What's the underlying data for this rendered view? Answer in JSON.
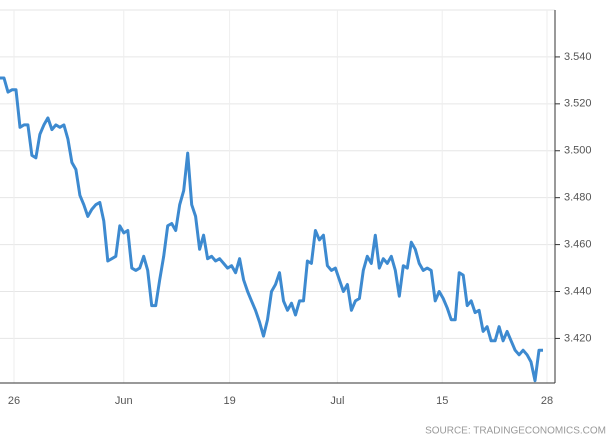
{
  "chart_data": {
    "type": "line",
    "source": "SOURCE: TRADINGECONOMICS.COM",
    "series": [
      {
        "color": "#3d8ad0",
        "values": [
          3.531,
          3.531,
          3.525,
          3.526,
          3.526,
          3.51,
          3.511,
          3.511,
          3.498,
          3.497,
          3.507,
          3.511,
          3.514,
          3.509,
          3.511,
          3.51,
          3.511,
          3.505,
          3.495,
          3.492,
          3.481,
          3.477,
          3.472,
          3.475,
          3.477,
          3.478,
          3.47,
          3.453,
          3.454,
          3.455,
          3.468,
          3.465,
          3.466,
          3.45,
          3.449,
          3.45,
          3.455,
          3.449,
          3.434,
          3.434,
          3.445,
          3.455,
          3.468,
          3.469,
          3.466,
          3.477,
          3.483,
          3.499,
          3.477,
          3.472,
          3.458,
          3.464,
          3.454,
          3.455,
          3.453,
          3.454,
          3.452,
          3.45,
          3.451,
          3.448,
          3.454,
          3.445,
          3.44,
          3.436,
          3.432,
          3.427,
          3.421,
          3.428,
          3.44,
          3.443,
          3.448,
          3.436,
          3.432,
          3.435,
          3.43,
          3.436,
          3.436,
          3.453,
          3.452,
          3.466,
          3.462,
          3.464,
          3.451,
          3.449,
          3.45,
          3.445,
          3.44,
          3.443,
          3.432,
          3.436,
          3.437,
          3.449,
          3.455,
          3.452,
          3.464,
          3.45,
          3.454,
          3.452,
          3.455,
          3.449,
          3.438,
          3.451,
          3.45,
          3.461,
          3.458,
          3.452,
          3.449,
          3.45,
          3.449,
          3.436,
          3.44,
          3.437,
          3.433,
          3.428,
          3.428,
          3.448,
          3.447,
          3.434,
          3.436,
          3.431,
          3.432,
          3.423,
          3.425,
          3.419,
          3.419,
          3.425,
          3.419,
          3.423,
          3.419,
          3.415,
          3.413,
          3.415,
          3.413,
          3.41,
          3.402,
          3.415,
          3.415
        ]
      }
    ],
    "xlim": [
      0,
      139
    ],
    "xticks": [
      {
        "value": 3.5,
        "label": "26"
      },
      {
        "value": 31,
        "label": "Jun"
      },
      {
        "value": 57.5,
        "label": "19"
      },
      {
        "value": 84.5,
        "label": "Jul"
      },
      {
        "value": 110.75,
        "label": "15"
      },
      {
        "value": 137,
        "label": "28"
      }
    ],
    "ylim": [
      3.401,
      3.56
    ],
    "yticks": [
      {
        "value": 3.42,
        "label": "3.420"
      },
      {
        "value": 3.44,
        "label": "3.440"
      },
      {
        "value": 3.46,
        "label": "3.460"
      },
      {
        "value": 3.48,
        "label": "3.480"
      },
      {
        "value": 3.5,
        "label": "3.500"
      },
      {
        "value": 3.52,
        "label": "3.520"
      },
      {
        "value": 3.54,
        "label": "3.540"
      }
    ],
    "grid": true
  }
}
